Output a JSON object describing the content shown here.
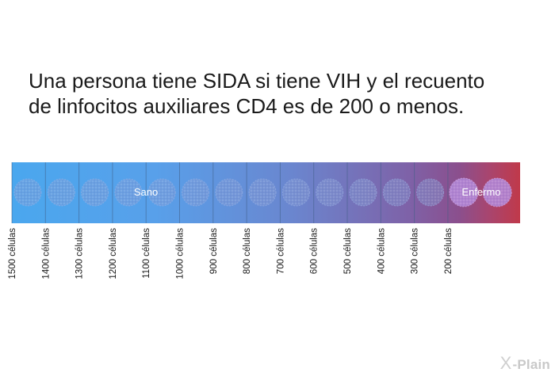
{
  "heading": {
    "line1": "Una persona tiene SIDA si tiene VIH y el recuento",
    "line2": "de linfocitos auxiliares CD4 es de 200 o menos."
  },
  "bar": {
    "label_healthy": "Sano",
    "label_sick": "Enfermo",
    "gradient_colors": [
      "#4aa7ee",
      "#5a9ae6",
      "#6a80c8",
      "#7e62a8",
      "#8b4f8d",
      "#c0394a"
    ]
  },
  "ticks": [
    "1500 células",
    "1400 células",
    "1300 células",
    "1200 células",
    "1100 células",
    "1000 células",
    "900 células",
    "800 células",
    "700 células",
    "600 células",
    "500 células",
    "400 células",
    "300 células",
    "200 células"
  ],
  "logo": {
    "mark": "X",
    "text": "-Plain"
  }
}
